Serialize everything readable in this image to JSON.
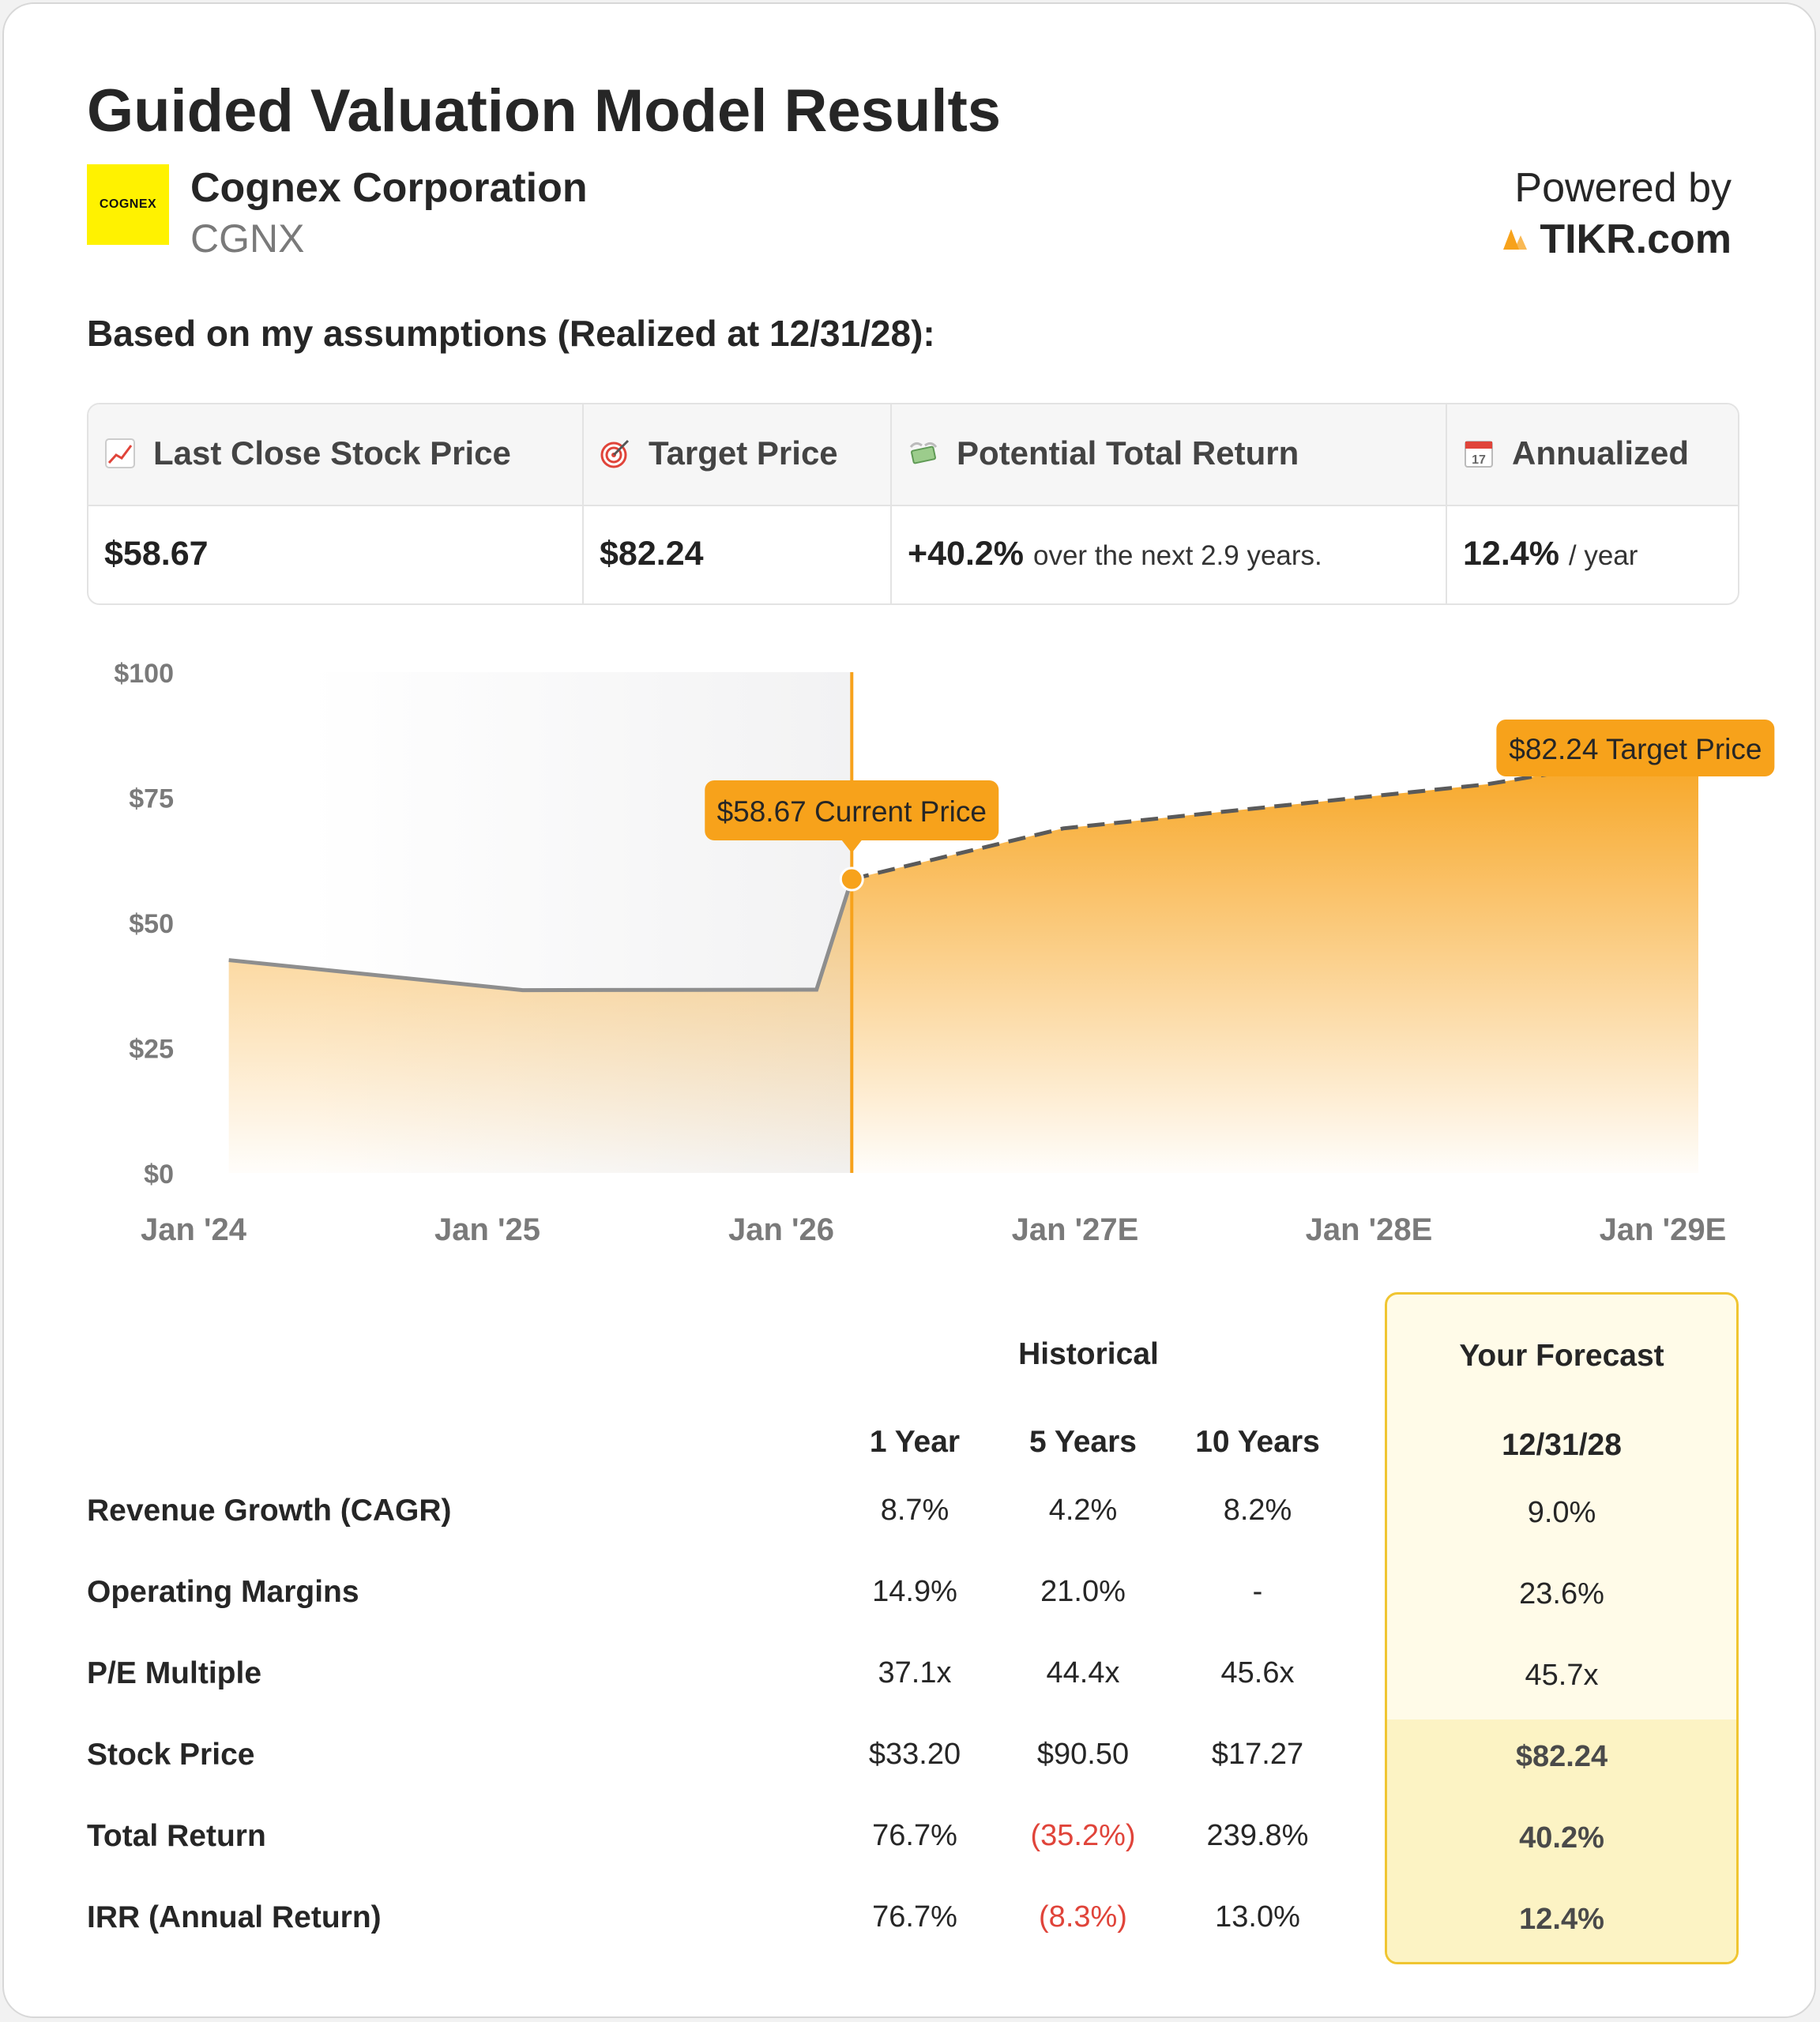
{
  "header": {
    "title": "Guided Valuation Model Results",
    "company_name": "Cognex Corporation",
    "ticker": "CGNX",
    "logo_text": "COGNEX",
    "powered_by": "Powered by",
    "brand": "TIKR.com"
  },
  "assumptions_heading": "Based on my assumptions (Realized at 12/31/28):",
  "summary": {
    "last_close_label": "Last Close Stock Price",
    "last_close_value": "$58.67",
    "target_label": "Target Price",
    "target_value": "$82.24",
    "total_return_label": "Potential Total Return",
    "total_return_value": "+40.2%",
    "total_return_suffix": "over the next 2.9 years.",
    "annualized_label": "Annualized",
    "annualized_value": "12.4%",
    "annualized_suffix": "/ year",
    "calendar_day": "17"
  },
  "chart_data": {
    "type": "area",
    "y_ticks": [
      "$100",
      "$75",
      "$50",
      "$25",
      "$0"
    ],
    "ylim": [
      0,
      100
    ],
    "x_ticks": [
      "Jan '24",
      "Jan '25",
      "Jan '26",
      "Jan '27E",
      "Jan '28E",
      "Jan '29E"
    ],
    "x_range": [
      2024.0,
      2029.0
    ],
    "historical": {
      "name": "Historical price",
      "x": [
        2024.12,
        2025.12,
        2026.12,
        2026.24
      ],
      "y": [
        42.5,
        36.5,
        36.6,
        58.67
      ]
    },
    "forecast": {
      "name": "Forecast price",
      "x": [
        2026.24,
        2026.96,
        2027.68,
        2028.4,
        2028.88
      ],
      "y": [
        58.67,
        68.8,
        73.2,
        77.6,
        82.24
      ]
    },
    "current_marker": {
      "x": 2026.24,
      "label": "$58.67 Current Price"
    },
    "target_marker": {
      "x": 2028.88,
      "label": "$82.24 Target Price"
    },
    "colors": {
      "accent": "#f7a21b",
      "historical_line": "#8e8e8e",
      "forecast_line": "#5a5a5a"
    }
  },
  "table": {
    "historical_header": "Historical",
    "forecast_header": "Your Forecast",
    "columns": [
      "1 Year",
      "5 Years",
      "10 Years"
    ],
    "forecast_date": "12/31/28",
    "rows": [
      {
        "label": "Revenue Growth (CAGR)",
        "values": [
          "8.7%",
          "4.2%",
          "8.2%"
        ],
        "forecast": "9.0%"
      },
      {
        "label": "Operating Margins",
        "values": [
          "14.9%",
          "21.0%",
          "-"
        ],
        "forecast": "23.6%"
      },
      {
        "label": "P/E Multiple",
        "values": [
          "37.1x",
          "44.4x",
          "45.6x"
        ],
        "forecast": "45.7x"
      },
      {
        "label": "Stock Price",
        "values": [
          "$33.20",
          "$90.50",
          "$17.27"
        ],
        "forecast": "$82.24"
      },
      {
        "label": "Total Return",
        "values": [
          "76.7%",
          "(35.2%)",
          "239.8%"
        ],
        "forecast": "40.2%"
      },
      {
        "label": "IRR (Annual Return)",
        "values": [
          "76.7%",
          "(8.3%)",
          "13.0%"
        ],
        "forecast": "12.4%"
      }
    ]
  }
}
